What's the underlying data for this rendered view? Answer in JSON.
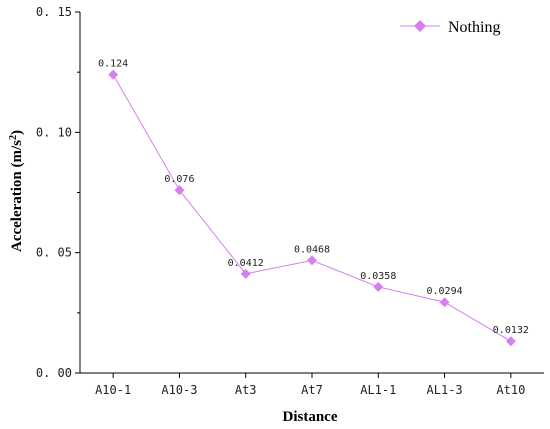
{
  "chart_data": {
    "type": "line",
    "categories": [
      "A10-1",
      "A10-3",
      "At3",
      "At7",
      "AL1-1",
      "AL1-3",
      "At10"
    ],
    "series": [
      {
        "name": "Nothing",
        "values": [
          0.124,
          0.076,
          0.0412,
          0.0468,
          0.0358,
          0.0294,
          0.0132
        ],
        "data_labels": [
          "0.124",
          "0.076",
          "0.0412",
          "0.0468",
          "0.0358",
          "0.0294",
          "0.0132"
        ],
        "color": "#d580f0",
        "marker": "diamond"
      }
    ],
    "xlabel": "Distance",
    "ylabel_main": "Acceleration (m/s",
    "ylabel_sup": "2",
    "ylabel_close": ")",
    "ylim": [
      0.0,
      0.15
    ],
    "yticks": [
      0.0,
      0.05,
      0.1,
      0.15
    ],
    "ytick_labels": [
      "0. 00",
      "0. 05",
      "0. 10",
      "0. 15"
    ],
    "legend_position": "top-right",
    "grid": false
  }
}
